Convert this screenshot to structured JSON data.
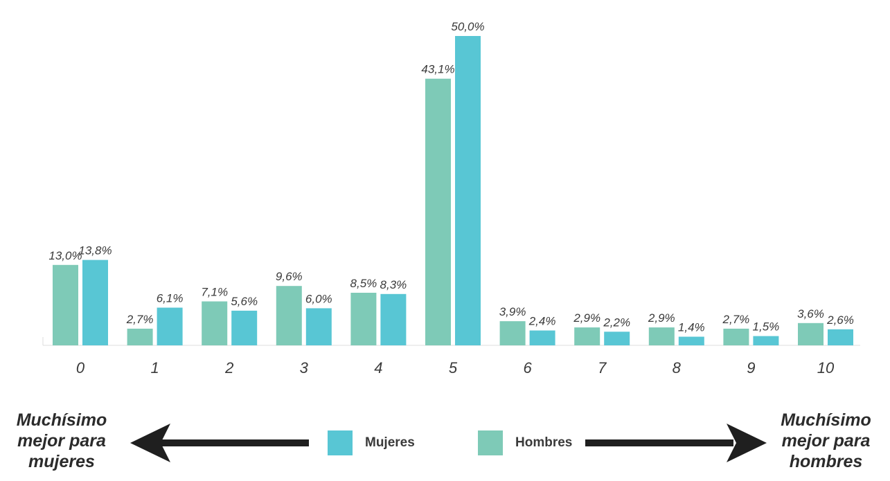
{
  "chart_data": {
    "type": "bar",
    "categories": [
      "0",
      "1",
      "2",
      "3",
      "4",
      "5",
      "6",
      "7",
      "8",
      "9",
      "10"
    ],
    "series": [
      {
        "name": "Hombres",
        "color": "#7ecab7",
        "values": [
          13.0,
          2.7,
          7.1,
          9.6,
          8.5,
          43.1,
          3.9,
          2.9,
          2.9,
          2.7,
          3.6
        ],
        "labels": [
          "13,0%",
          "2,7%",
          "7,1%",
          "9,6%",
          "8,5%",
          "43,1%",
          "3,9%",
          "2,9%",
          "2,9%",
          "2,7%",
          "3,6%"
        ]
      },
      {
        "name": "Mujeres",
        "color": "#58c6d4",
        "values": [
          13.8,
          6.1,
          5.6,
          6.0,
          8.3,
          50.0,
          2.4,
          2.2,
          1.4,
          1.5,
          2.6
        ],
        "labels": [
          "13,8%",
          "6,1%",
          "5,6%",
          "6,0%",
          "8,3%",
          "50,0%",
          "2,4%",
          "2,2%",
          "1,4%",
          "1,5%",
          "2,6%"
        ]
      }
    ],
    "ylim": [
      0,
      50
    ],
    "grid": false,
    "legend": {
      "placement": "bottom-center",
      "items": [
        {
          "label": "Mujeres",
          "color": "#58c6d4"
        },
        {
          "label": "Hombres",
          "color": "#7ecab7"
        }
      ]
    },
    "annotations": {
      "left": [
        "Muchísimo",
        "mejor para",
        "mujeres"
      ],
      "right": [
        "Muchísimo",
        "mejor para",
        "hombres"
      ]
    }
  }
}
